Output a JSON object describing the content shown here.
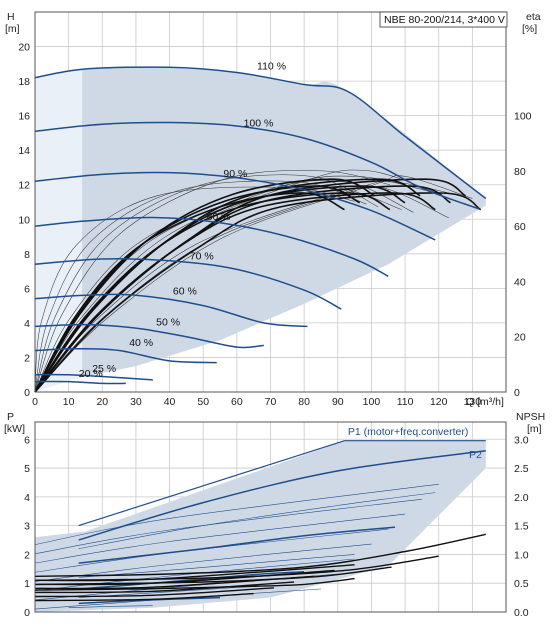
{
  "chart_data": [
    {
      "type": "line",
      "title": "NBE 80-200/214, 3*400 V",
      "xlabel": "Q [m³/h]",
      "ylabel_left_name": "H",
      "ylabel_left_unit": "[m]",
      "ylabel_right_name": "eta",
      "ylabel_right_unit": "[%]",
      "xlim": [
        0,
        140
      ],
      "ylim": [
        0,
        22
      ],
      "y_right_lim": [
        0,
        137.5
      ],
      "x_ticks": [
        0,
        10,
        20,
        30,
        40,
        50,
        60,
        70,
        80,
        90,
        100,
        110,
        120,
        130
      ],
      "y_ticks": [
        0,
        2,
        4,
        6,
        8,
        10,
        12,
        14,
        16,
        18,
        20
      ],
      "y_right_ticks": [
        0,
        20,
        40,
        60,
        80,
        100
      ],
      "grid": true,
      "envelope": {
        "top": [
          [
            0,
            18.2
          ],
          [
            15,
            18.7
          ],
          [
            40,
            18.8
          ],
          [
            60,
            18.5
          ],
          [
            80,
            17.8
          ],
          [
            93,
            17.4
          ],
          [
            134,
            11.2
          ]
        ],
        "bottom": [
          [
            0,
            0
          ],
          [
            10,
            0.7
          ],
          [
            30,
            1.5
          ],
          [
            55,
            3.0
          ],
          [
            80,
            5.1
          ],
          [
            105,
            7.4
          ],
          [
            134,
            10.8
          ]
        ],
        "lighter_strip_to_q": 14
      },
      "series": [
        {
          "name": "110 %",
          "label_at": [
            66,
            18.6
          ],
          "points": [
            [
              0,
              18.2
            ],
            [
              15,
              18.7
            ],
            [
              40,
              18.8
            ],
            [
              60,
              18.5
            ],
            [
              80,
              17.8
            ],
            [
              93,
              17.4
            ],
            [
              110,
              14.8
            ],
            [
              134,
              11.2
            ]
          ]
        },
        {
          "name": "100 %",
          "label_at": [
            62,
            15.3
          ],
          "points": [
            [
              0,
              15.1
            ],
            [
              20,
              15.5
            ],
            [
              40,
              15.6
            ],
            [
              60,
              15.4
            ],
            [
              80,
              14.7
            ],
            [
              100,
              13.3
            ],
            [
              115,
              11.8
            ],
            [
              132,
              10.6
            ]
          ]
        },
        {
          "name": "90 %",
          "label_at": [
            56,
            12.4
          ],
          "points": [
            [
              0,
              12.2
            ],
            [
              20,
              12.6
            ],
            [
              40,
              12.7
            ],
            [
              60,
              12.4
            ],
            [
              80,
              11.7
            ],
            [
              100,
              10.5
            ],
            [
              119,
              8.8
            ]
          ]
        },
        {
          "name": "80 %",
          "label_at": [
            51,
            9.9
          ],
          "points": [
            [
              0,
              9.6
            ],
            [
              15,
              9.9
            ],
            [
              35,
              10.1
            ],
            [
              55,
              9.8
            ],
            [
              75,
              9.0
            ],
            [
              95,
              7.7
            ],
            [
              105,
              6.7
            ]
          ]
        },
        {
          "name": "70 %",
          "label_at": [
            46,
            7.6
          ],
          "points": [
            [
              0,
              7.4
            ],
            [
              20,
              7.7
            ],
            [
              40,
              7.6
            ],
            [
              60,
              7.1
            ],
            [
              80,
              5.9
            ],
            [
              91,
              4.8
            ]
          ]
        },
        {
          "name": "60 %",
          "label_at": [
            41,
            5.6
          ],
          "points": [
            [
              0,
              5.4
            ],
            [
              15,
              5.6
            ],
            [
              30,
              5.6
            ],
            [
              50,
              5.0
            ],
            [
              68,
              4.0
            ],
            [
              81,
              3.8
            ]
          ]
        },
        {
          "name": "50 %",
          "label_at": [
            36,
            3.8
          ],
          "points": [
            [
              0,
              3.8
            ],
            [
              15,
              3.9
            ],
            [
              30,
              3.7
            ],
            [
              45,
              3.2
            ],
            [
              60,
              2.6
            ],
            [
              68,
              2.7
            ]
          ]
        },
        {
          "name": "40 %",
          "label_at": [
            28,
            2.6
          ],
          "points": [
            [
              0,
              2.4
            ],
            [
              12,
              2.5
            ],
            [
              25,
              2.4
            ],
            [
              40,
              1.8
            ],
            [
              54,
              1.7
            ]
          ]
        },
        {
          "name": "25 %",
          "label_at": [
            17,
            1.1
          ],
          "points": [
            [
              0,
              1.0
            ],
            [
              10,
              1.0
            ],
            [
              20,
              0.9
            ],
            [
              35,
              0.7
            ]
          ]
        },
        {
          "name": "20 %",
          "label_at": [
            13,
            0.8
          ],
          "points": [
            [
              0,
              0.6
            ],
            [
              10,
              0.6
            ],
            [
              20,
              0.5
            ],
            [
              27,
              0.5
            ]
          ]
        }
      ]
    },
    {
      "type": "line",
      "xlabel": "",
      "ylabel_left_name": "P",
      "ylabel_left_unit": "[kW]",
      "ylabel_right_name": "NPSH",
      "ylabel_right_unit": "[m]",
      "xlim": [
        0,
        140
      ],
      "ylim": [
        0,
        6.6
      ],
      "y_right_lim": [
        0,
        3.3
      ],
      "y_ticks": [
        0,
        1,
        2,
        3,
        4,
        5,
        6
      ],
      "y_right_ticks": [
        "0.0",
        "0.5",
        "1.0",
        "1.5",
        "2.0",
        "2.5",
        "3.0"
      ],
      "grid": true,
      "annotations": [
        "P1 (motor+freq.converter)",
        "P2"
      ],
      "envelope": {
        "top": [
          [
            0,
            2.6
          ],
          [
            15,
            2.8
          ],
          [
            92,
            5.95
          ],
          [
            134,
            5.95
          ]
        ],
        "bottom": [
          [
            0,
            0
          ],
          [
            35,
            0.15
          ],
          [
            70,
            0.5
          ],
          [
            105,
            1.6
          ],
          [
            134,
            5.0
          ]
        ]
      },
      "series": [
        {
          "name": "P1 (motor+freq.converter)",
          "points": [
            [
              13,
              3.0
            ],
            [
              92,
              5.95
            ],
            [
              134,
              5.95
            ]
          ]
        },
        {
          "name": "P2",
          "points": [
            [
              13,
              2.5
            ],
            [
              50,
              3.8
            ],
            [
              90,
              4.9
            ],
            [
              134,
              5.6
            ]
          ]
        },
        {
          "name": "",
          "points": [
            [
              13,
              2.2
            ],
            [
              50,
              3.0
            ],
            [
              90,
              3.7
            ],
            [
              119,
              4.15
            ]
          ]
        },
        {
          "name": "",
          "points": [
            [
              13,
              1.7
            ],
            [
              50,
              2.2
            ],
            [
              80,
              2.65
            ],
            [
              107,
              2.95
            ]
          ]
        },
        {
          "name": "",
          "points": [
            [
              13,
              1.2
            ],
            [
              50,
              1.55
            ],
            [
              80,
              1.85
            ],
            [
              95,
              2.0
            ]
          ]
        },
        {
          "name": "",
          "points": [
            [
              13,
              0.8
            ],
            [
              40,
              1.05
            ],
            [
              65,
              1.3
            ],
            [
              80,
              1.4
            ]
          ]
        },
        {
          "name": "",
          "points": [
            [
              13,
              0.5
            ],
            [
              40,
              0.7
            ],
            [
              60,
              0.85
            ],
            [
              68,
              0.9
            ]
          ]
        },
        {
          "name": "",
          "points": [
            [
              13,
              0.3
            ],
            [
              30,
              0.4
            ],
            [
              55,
              0.5
            ]
          ]
        },
        {
          "name": "",
          "points": [
            [
              10,
              0.15
            ],
            [
              25,
              0.2
            ],
            [
              35,
              0.22
            ]
          ]
        }
      ],
      "npsh": [
        [
          [
            0,
            0.62
          ],
          [
            40,
            0.66
          ],
          [
            80,
            0.78
          ],
          [
            110,
            1.05
          ],
          [
            134,
            1.35
          ]
        ],
        [
          [
            0,
            0.55
          ],
          [
            35,
            0.57
          ],
          [
            65,
            0.62
          ],
          [
            95,
            0.74
          ],
          [
            120,
            0.97
          ]
        ],
        [
          [
            0,
            0.48
          ],
          [
            30,
            0.5
          ],
          [
            55,
            0.53
          ],
          [
            85,
            0.62
          ],
          [
            106,
            0.78
          ]
        ],
        [
          [
            0,
            0.38
          ],
          [
            30,
            0.4
          ],
          [
            60,
            0.44
          ],
          [
            80,
            0.48
          ],
          [
            95,
            0.58
          ]
        ]
      ]
    }
  ]
}
